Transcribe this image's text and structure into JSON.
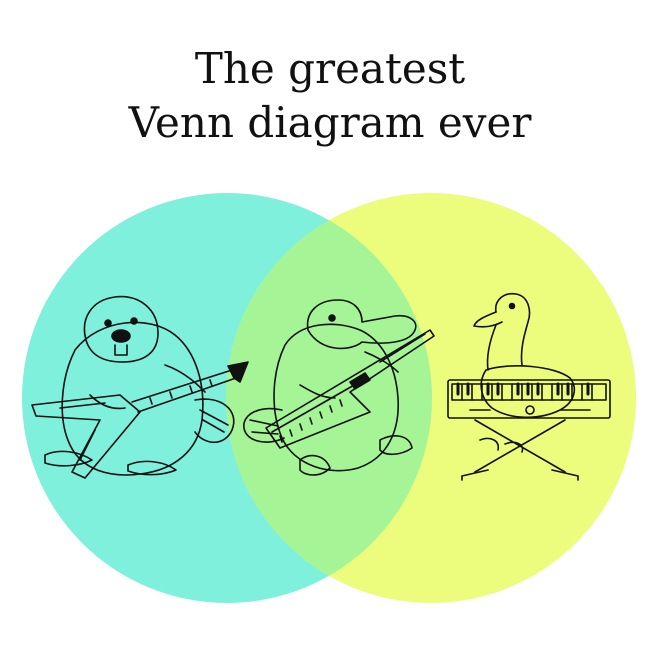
{
  "title": {
    "line1": "The greatest",
    "line2": "Venn diagram ever"
  },
  "colors": {
    "left_circle": "#7ff0dc",
    "right_circle": "#ecfc7c",
    "overlap": "#a5f495",
    "ink": "#111111"
  },
  "figures": {
    "left": "beaver-with-guitar-icon",
    "middle": "platypus-with-keytar-icon",
    "right": "duck-with-keyboard-icon"
  }
}
